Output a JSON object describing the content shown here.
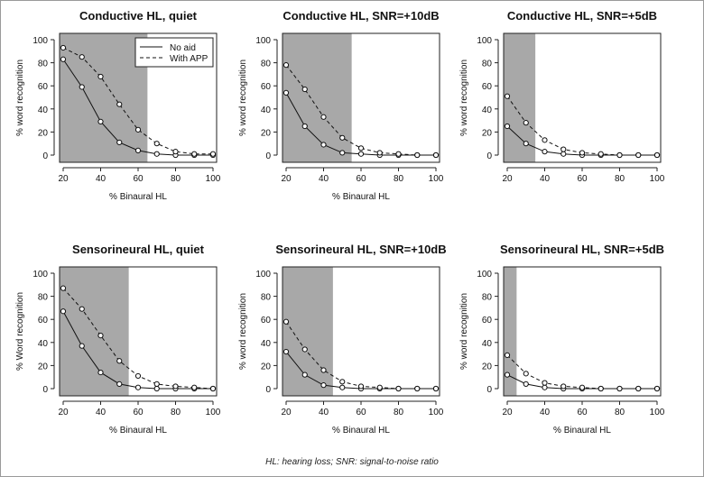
{
  "footnote": "HL: hearing loss; SNR: signal-to-noise ratio",
  "colors": {
    "shade": "#a8a8a8",
    "line": "#111111",
    "point_fill": "#ffffff"
  },
  "chart_data": [
    {
      "type": "line",
      "title": "Conductive HL, quiet",
      "xlabel": "% Binaural HL",
      "ylabel": "% word recognition",
      "xlim": [
        20,
        100
      ],
      "ylim": [
        0,
        100
      ],
      "xticks": [
        20,
        40,
        60,
        80,
        100
      ],
      "yticks": [
        0,
        20,
        40,
        60,
        80,
        100
      ],
      "shaded_x_range": [
        15,
        65
      ],
      "legend": {
        "position": "top-right",
        "entries": [
          {
            "label": "No aid",
            "style": "solid"
          },
          {
            "label": "With APP",
            "style": "dashed"
          }
        ]
      },
      "x": [
        20,
        30,
        40,
        50,
        60,
        70,
        80,
        90,
        100
      ],
      "series": [
        {
          "name": "No aid",
          "style": "solid",
          "values": [
            83,
            59,
            29,
            11,
            4,
            1,
            0,
            0,
            0
          ]
        },
        {
          "name": "With APP",
          "style": "dashed",
          "values": [
            93,
            85,
            68,
            44,
            22,
            10,
            3,
            1,
            1
          ]
        }
      ]
    },
    {
      "type": "line",
      "title": "Conductive HL, SNR=+10dB",
      "xlabel": "% Binaural HL",
      "ylabel": "% word recognition",
      "xlim": [
        20,
        100
      ],
      "ylim": [
        0,
        100
      ],
      "xticks": [
        20,
        40,
        60,
        80,
        100
      ],
      "yticks": [
        0,
        20,
        40,
        60,
        80,
        100
      ],
      "shaded_x_range": [
        15,
        55
      ],
      "x": [
        20,
        30,
        40,
        50,
        60,
        70,
        80,
        90,
        100
      ],
      "series": [
        {
          "style": "solid",
          "values": [
            54,
            25,
            9,
            2,
            1,
            0,
            0,
            0,
            0
          ]
        },
        {
          "style": "dashed",
          "values": [
            78,
            57,
            33,
            15,
            6,
            2,
            1,
            0,
            0
          ]
        }
      ]
    },
    {
      "type": "line",
      "title": "Conductive HL, SNR=+5dB",
      "xlabel": "",
      "ylabel": "% word recognition",
      "xlim": [
        20,
        100
      ],
      "ylim": [
        0,
        100
      ],
      "xticks": [
        20,
        40,
        60,
        80,
        100
      ],
      "yticks": [
        0,
        20,
        40,
        60,
        80,
        100
      ],
      "shaded_x_range": [
        15,
        35
      ],
      "x": [
        20,
        30,
        40,
        50,
        60,
        70,
        80,
        90,
        100
      ],
      "series": [
        {
          "style": "solid",
          "values": [
            25,
            10,
            3,
            1,
            0,
            0,
            0,
            0,
            0
          ]
        },
        {
          "style": "dashed",
          "values": [
            51,
            28,
            13,
            5,
            2,
            1,
            0,
            0,
            0
          ]
        }
      ]
    },
    {
      "type": "line",
      "title": "Sensorineural HL, quiet",
      "xlabel": "% Binaural HL",
      "ylabel": "% Word recognition",
      "xlim": [
        20,
        100
      ],
      "ylim": [
        0,
        100
      ],
      "xticks": [
        20,
        40,
        60,
        80,
        100
      ],
      "yticks": [
        0,
        20,
        40,
        60,
        80,
        100
      ],
      "shaded_x_range": [
        15,
        55
      ],
      "x": [
        20,
        30,
        40,
        50,
        60,
        70,
        80,
        90,
        100
      ],
      "series": [
        {
          "style": "solid",
          "values": [
            67,
            37,
            14,
            4,
            1,
            0,
            0,
            0,
            0
          ]
        },
        {
          "style": "dashed",
          "values": [
            87,
            69,
            46,
            24,
            11,
            4,
            2,
            1,
            0
          ]
        }
      ]
    },
    {
      "type": "line",
      "title": "Sensorineural HL, SNR=+10dB",
      "xlabel": "% Binaural HL",
      "ylabel": "% word recognition",
      "xlim": [
        20,
        100
      ],
      "ylim": [
        0,
        100
      ],
      "xticks": [
        20,
        40,
        60,
        80,
        100
      ],
      "yticks": [
        0,
        20,
        40,
        60,
        80,
        100
      ],
      "shaded_x_range": [
        15,
        45
      ],
      "x": [
        20,
        30,
        40,
        50,
        60,
        70,
        80,
        90,
        100
      ],
      "series": [
        {
          "style": "solid",
          "values": [
            32,
            12,
            3,
            1,
            0,
            0,
            0,
            0,
            0
          ]
        },
        {
          "style": "dashed",
          "values": [
            58,
            34,
            16,
            6,
            2,
            1,
            0,
            0,
            0
          ]
        }
      ]
    },
    {
      "type": "line",
      "title": "Sensorineural HL, SNR=+5dB",
      "xlabel": "% Binaural HL",
      "ylabel": "% word recognition",
      "xlim": [
        20,
        100
      ],
      "ylim": [
        0,
        100
      ],
      "xticks": [
        20,
        40,
        60,
        80,
        100
      ],
      "yticks": [
        0,
        20,
        40,
        60,
        80,
        100
      ],
      "shaded_x_range": [
        15,
        25
      ],
      "x": [
        20,
        30,
        40,
        50,
        60,
        70,
        80,
        90,
        100
      ],
      "series": [
        {
          "style": "solid",
          "values": [
            12,
            4,
            1,
            0,
            0,
            0,
            0,
            0,
            0
          ]
        },
        {
          "style": "dashed",
          "values": [
            29,
            13,
            5,
            2,
            1,
            0,
            0,
            0,
            0
          ]
        }
      ]
    }
  ]
}
